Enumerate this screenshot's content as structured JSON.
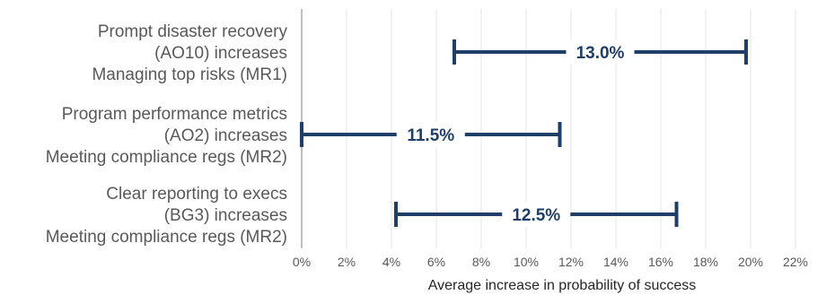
{
  "chart_data": {
    "type": "range",
    "xlabel": "Average increase in probability of success",
    "xlim": [
      0,
      22
    ],
    "xticks": [
      0,
      2,
      4,
      6,
      8,
      10,
      12,
      14,
      16,
      18,
      20,
      22
    ],
    "xtick_labels": [
      "0%",
      "2%",
      "4%",
      "6%",
      "8%",
      "10%",
      "12%",
      "14%",
      "16%",
      "18%",
      "20%",
      "22%"
    ],
    "grid": "vertical",
    "categories": [
      [
        "Prompt disaster recovery",
        "(AO10) increases",
        "Managing top risks (MR1)"
      ],
      [
        "Program performance metrics",
        "(AO2) increases",
        "Meeting compliance regs (MR2)"
      ],
      [
        "Clear reporting to execs",
        "(BG3) increases",
        "Meeting compliance regs (MR2)"
      ]
    ],
    "ranges": [
      {
        "low": 6.8,
        "high": 19.8,
        "label": "13.0%"
      },
      {
        "low": 0.0,
        "high": 11.5,
        "label": "11.5%"
      },
      {
        "low": 4.2,
        "high": 16.7,
        "label": "12.5%"
      }
    ],
    "colors": {
      "bar": "#1f3f66",
      "grid": "#e6e6e6",
      "axis": "#bfbfbf"
    }
  }
}
